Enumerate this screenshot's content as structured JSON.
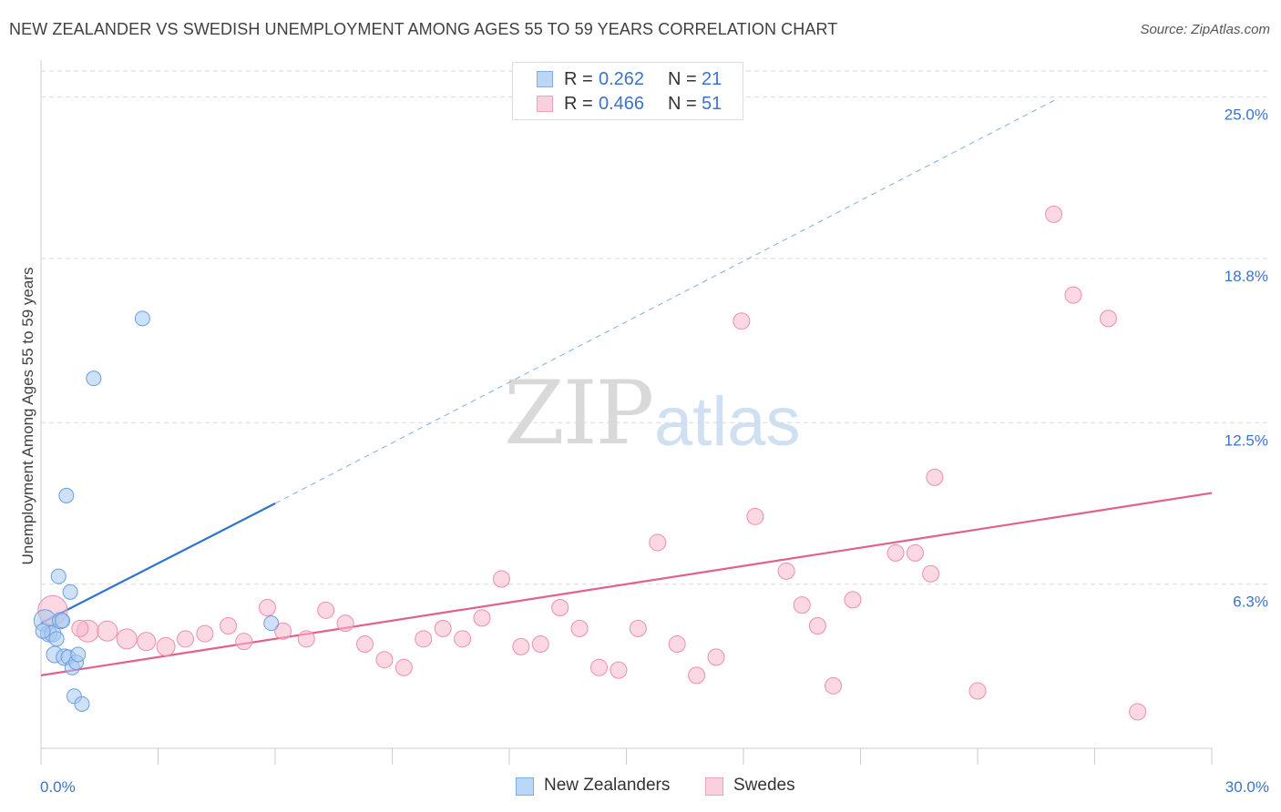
{
  "title": "NEW ZEALANDER VS SWEDISH UNEMPLOYMENT AMONG AGES 55 TO 59 YEARS CORRELATION CHART",
  "source": "Source: ZipAtlas.com",
  "watermark": {
    "zip": "ZIP",
    "atlas": "atlas"
  },
  "legend": {
    "rows": [
      {
        "r_label": "R =",
        "r_value": "0.262",
        "n_label": "N =",
        "n_value": "21",
        "color": "#a8c8f0"
      },
      {
        "r_label": "R =",
        "r_value": "0.466",
        "n_label": "N =",
        "n_value": "51",
        "color": "#f7b8cb"
      }
    ]
  },
  "bottom_legend": [
    {
      "label": "New Zealanders",
      "color": "#a8c8f0"
    },
    {
      "label": "Swedes",
      "color": "#f7b8cb"
    }
  ],
  "chart_data": {
    "type": "scatter",
    "title": "NEW ZEALANDER VS SWEDISH UNEMPLOYMENT AMONG AGES 55 TO 59 YEARS CORRELATION CHART",
    "xlabel": "",
    "ylabel": "Unemployment Among Ages 55 to 59 years",
    "xlim": [
      0,
      30
    ],
    "ylim": [
      0,
      26
    ],
    "x_tick_labels": [
      "0.0%",
      "30.0%"
    ],
    "y_ticks": [
      6.3,
      12.5,
      18.8,
      25.0
    ],
    "y_tick_labels": [
      "6.3%",
      "12.5%",
      "18.8%",
      "25.0%"
    ],
    "grid": true,
    "legend_position": "top-center",
    "series": [
      {
        "name": "New Zealanders",
        "color": "#a8c8f0",
        "stroke": "#6a9ee0",
        "line_color": "#2f74d0",
        "trend": {
          "x0": 0,
          "y0": 4.8,
          "x1": 6.0,
          "y1": 9.4,
          "dashed_to_x": 26.0,
          "dashed_to_y": 24.9
        },
        "points": [
          [
            0.1,
            4.9,
            12
          ],
          [
            0.2,
            4.4,
            9
          ],
          [
            0.3,
            4.4,
            9
          ],
          [
            0.35,
            3.6,
            9
          ],
          [
            0.4,
            4.2,
            8
          ],
          [
            0.45,
            6.6,
            8
          ],
          [
            0.5,
            4.9,
            9
          ],
          [
            0.55,
            4.9,
            8
          ],
          [
            0.6,
            3.5,
            9
          ],
          [
            0.65,
            9.7,
            8
          ],
          [
            0.7,
            3.5,
            8
          ],
          [
            0.75,
            6.0,
            8
          ],
          [
            0.8,
            3.1,
            8
          ],
          [
            0.85,
            2.0,
            8
          ],
          [
            0.9,
            3.3,
            8
          ],
          [
            0.95,
            3.6,
            8
          ],
          [
            1.05,
            1.7,
            8
          ],
          [
            1.35,
            14.2,
            8
          ],
          [
            2.6,
            16.5,
            8
          ],
          [
            5.9,
            4.8,
            8
          ],
          [
            0.05,
            4.5,
            8
          ]
        ]
      },
      {
        "name": "Swedes",
        "color": "#f7b8cb",
        "stroke": "#ec8fae",
        "line_color": "#e2608e",
        "trend": {
          "x0": 0,
          "y0": 2.8,
          "x1": 30.0,
          "y1": 9.8
        },
        "points": [
          [
            0.3,
            5.3,
            16
          ],
          [
            1.2,
            4.5,
            12
          ],
          [
            1.7,
            4.5,
            11
          ],
          [
            2.2,
            4.2,
            11
          ],
          [
            2.7,
            4.1,
            10
          ],
          [
            3.2,
            3.9,
            10
          ],
          [
            3.7,
            4.2,
            9
          ],
          [
            4.2,
            4.4,
            9
          ],
          [
            4.8,
            4.7,
            9
          ],
          [
            5.2,
            4.1,
            9
          ],
          [
            5.8,
            5.4,
            9
          ],
          [
            6.2,
            4.5,
            9
          ],
          [
            6.8,
            4.2,
            9
          ],
          [
            7.3,
            5.3,
            9
          ],
          [
            7.8,
            4.8,
            9
          ],
          [
            8.3,
            4.0,
            9
          ],
          [
            8.8,
            3.4,
            9
          ],
          [
            9.3,
            3.1,
            9
          ],
          [
            9.8,
            4.2,
            9
          ],
          [
            10.3,
            4.6,
            9
          ],
          [
            10.8,
            4.2,
            9
          ],
          [
            11.3,
            5.0,
            9
          ],
          [
            11.8,
            6.5,
            9
          ],
          [
            12.3,
            3.9,
            9
          ],
          [
            12.8,
            4.0,
            9
          ],
          [
            13.3,
            5.4,
            9
          ],
          [
            13.8,
            4.6,
            9
          ],
          [
            14.3,
            3.1,
            9
          ],
          [
            14.8,
            3.0,
            9
          ],
          [
            15.3,
            4.6,
            9
          ],
          [
            15.8,
            7.9,
            9
          ],
          [
            16.3,
            4.0,
            9
          ],
          [
            16.8,
            2.8,
            9
          ],
          [
            17.3,
            3.5,
            9
          ],
          [
            17.95,
            16.4,
            9
          ],
          [
            18.3,
            8.9,
            9
          ],
          [
            19.1,
            6.8,
            9
          ],
          [
            19.5,
            5.5,
            9
          ],
          [
            19.9,
            4.7,
            9
          ],
          [
            20.3,
            2.4,
            9
          ],
          [
            20.8,
            5.7,
            9
          ],
          [
            21.9,
            7.5,
            9
          ],
          [
            22.4,
            7.5,
            9
          ],
          [
            22.8,
            6.7,
            9
          ],
          [
            22.9,
            10.4,
            9
          ],
          [
            24.0,
            2.2,
            9
          ],
          [
            25.95,
            20.5,
            9
          ],
          [
            26.45,
            17.4,
            9
          ],
          [
            27.35,
            16.5,
            9
          ],
          [
            28.1,
            1.4,
            9
          ],
          [
            1.0,
            4.6,
            9
          ]
        ]
      }
    ]
  }
}
